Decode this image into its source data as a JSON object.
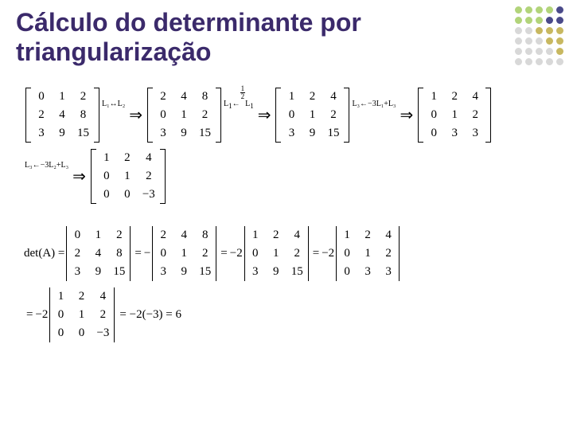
{
  "title_line1": "Cálculo do determinante por",
  "title_line2": "triangularização",
  "dot_colors": [
    "#b2d47a",
    "#b2d47a",
    "#b2d47a",
    "#b2d47a",
    "#4a4a8a",
    "#b2d47a",
    "#b2d47a",
    "#b2d47a",
    "#4a4a8a",
    "#4a4a8a",
    "#d8d8d8",
    "#d8d8d8",
    "#c8b860",
    "#c8b860",
    "#c8b860",
    "#d8d8d8",
    "#d8d8d8",
    "#d8d8d8",
    "#c8b860",
    "#c8b860",
    "#d8d8d8",
    "#d8d8d8",
    "#d8d8d8",
    "#d8d8d8",
    "#c8b860",
    "#d8d8d8",
    "#d8d8d8",
    "#d8d8d8",
    "#d8d8d8",
    "#d8d8d8"
  ],
  "m1": [
    [
      "0",
      "1",
      "2"
    ],
    [
      "2",
      "4",
      "8"
    ],
    [
      "3",
      "9",
      "15"
    ]
  ],
  "op1": "L₁↔L₂",
  "m2": [
    [
      "2",
      "4",
      "8"
    ],
    [
      "0",
      "1",
      "2"
    ],
    [
      "3",
      "9",
      "15"
    ]
  ],
  "op2_top": "1",
  "op2_bot": "2",
  "op2_lbl": "L₁ ← — L₁",
  "m3": [
    [
      "1",
      "2",
      "4"
    ],
    [
      "0",
      "1",
      "2"
    ],
    [
      "3",
      "9",
      "15"
    ]
  ],
  "op3": "L₃←−3L₁+L₃",
  "m4": [
    [
      "1",
      "2",
      "4"
    ],
    [
      "0",
      "1",
      "2"
    ],
    [
      "0",
      "3",
      "3"
    ]
  ],
  "op4": "L₃←−3L₂+L₃",
  "m5": [
    [
      "1",
      "2",
      "4"
    ],
    [
      "0",
      "1",
      "2"
    ],
    [
      "0",
      "0",
      "−3"
    ]
  ],
  "det_label": "det(A) =",
  "eq": "=",
  "neg": "−",
  "neg2": "−2",
  "final_expr": "= −2(−3) = 6",
  "arrow": "⇒"
}
